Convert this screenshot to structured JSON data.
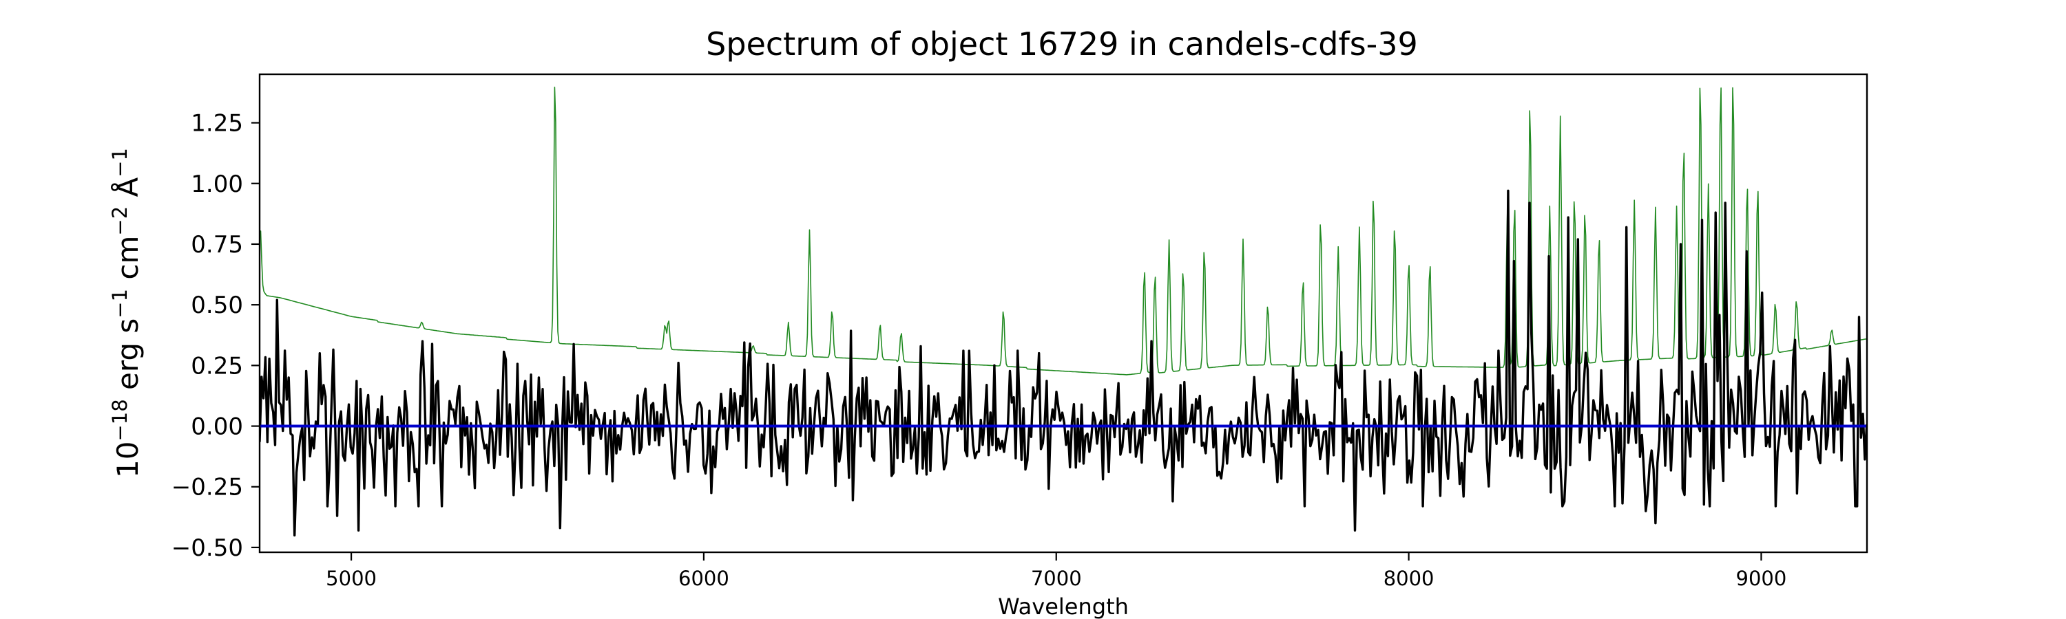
{
  "chart_data": {
    "type": "line",
    "title": "Spectrum of object 16729 in candels-cdfs-39",
    "xlabel": "Wavelength",
    "ylabel": {
      "base": "10",
      "exp1": "−18",
      "mid1": " erg s",
      "exp2": "−1",
      "mid2": " cm",
      "exp3": "−2",
      "mid3": " Å",
      "exp4": "−1"
    },
    "xlim": [
      4740,
      9300
    ],
    "ylim": [
      -0.52,
      1.45
    ],
    "x_ticks": [
      5000,
      6000,
      7000,
      8000,
      9000
    ],
    "x_tick_labels": [
      "5000",
      "6000",
      "7000",
      "8000",
      "9000"
    ],
    "y_ticks": [
      -0.5,
      -0.25,
      0.0,
      0.25,
      0.5,
      0.75,
      1.0,
      1.25
    ],
    "y_tick_labels": [
      "−0.50",
      "−0.25",
      "0.00",
      "0.25",
      "0.50",
      "0.75",
      "1.00",
      "1.25"
    ],
    "grid": false,
    "series": [
      {
        "kind": "error",
        "color": "#228b22",
        "continuum": [
          [
            4740,
            0.58
          ],
          [
            4760,
            0.54
          ],
          [
            4800,
            0.53
          ],
          [
            5000,
            0.45
          ],
          [
            5300,
            0.38
          ],
          [
            5600,
            0.34
          ],
          [
            6000,
            0.31
          ],
          [
            6400,
            0.28
          ],
          [
            6800,
            0.25
          ],
          [
            7200,
            0.21
          ],
          [
            7500,
            0.25
          ],
          [
            8000,
            0.25
          ],
          [
            8300,
            0.24
          ],
          [
            8600,
            0.27
          ],
          [
            9000,
            0.29
          ],
          [
            9300,
            0.36
          ]
        ],
        "spikes": [
          [
            4742,
            0.82
          ],
          [
            5200,
            0.43
          ],
          [
            5578,
            1.45
          ],
          [
            5890,
            0.42
          ],
          [
            5900,
            0.44
          ],
          [
            6140,
            0.33
          ],
          [
            6240,
            0.43
          ],
          [
            6300,
            0.81
          ],
          [
            6364,
            0.48
          ],
          [
            6500,
            0.42
          ],
          [
            6560,
            0.39
          ],
          [
            6850,
            0.48
          ],
          [
            7250,
            0.65
          ],
          [
            7280,
            0.63
          ],
          [
            7320,
            0.77
          ],
          [
            7360,
            0.65
          ],
          [
            7420,
            0.74
          ],
          [
            7530,
            0.77
          ],
          [
            7600,
            0.5
          ],
          [
            7700,
            0.61
          ],
          [
            7750,
            0.86
          ],
          [
            7800,
            0.74
          ],
          [
            7860,
            0.82
          ],
          [
            7900,
            0.96
          ],
          [
            7960,
            0.83
          ],
          [
            8000,
            0.68
          ],
          [
            8060,
            0.68
          ],
          [
            8280,
            0.89
          ],
          [
            8300,
            0.92
          ],
          [
            8344,
            1.35
          ],
          [
            8400,
            0.91
          ],
          [
            8430,
            1.28
          ],
          [
            8470,
            0.96
          ],
          [
            8500,
            0.9
          ],
          [
            8540,
            0.79
          ],
          [
            8640,
            0.93
          ],
          [
            8700,
            0.9
          ],
          [
            8760,
            0.91
          ],
          [
            8780,
            1.17
          ],
          [
            8827,
            1.45
          ],
          [
            8850,
            1.0
          ],
          [
            8885,
            1.45
          ],
          [
            8920,
            1.45
          ],
          [
            8960,
            1.01
          ],
          [
            8990,
            1.0
          ],
          [
            9040,
            0.51
          ],
          [
            9100,
            0.52
          ],
          [
            9200,
            0.4
          ]
        ]
      },
      {
        "kind": "flux",
        "color": "#000000",
        "seed": 16729,
        "noise_sigma": [
          [
            4740,
            0.17
          ],
          [
            5800,
            0.17
          ],
          [
            7200,
            0.14
          ],
          [
            8200,
            0.17
          ],
          [
            8600,
            0.2
          ],
          [
            9300,
            0.2
          ]
        ],
        "peaks": [
          [
            4790,
            0.52
          ],
          [
            4910,
            0.3
          ],
          [
            5200,
            0.35
          ],
          [
            5590,
            0.42
          ],
          [
            6130,
            0.34
          ],
          [
            6460,
            0.2
          ],
          [
            7270,
            0.35
          ],
          [
            7850,
            0.59
          ],
          [
            8280,
            0.97
          ],
          [
            8300,
            0.68
          ],
          [
            8340,
            0.92
          ],
          [
            8400,
            0.7
          ],
          [
            8450,
            0.86
          ],
          [
            8480,
            0.77
          ],
          [
            8620,
            0.82
          ],
          [
            8770,
            0.75
          ],
          [
            8830,
            0.85
          ],
          [
            8870,
            0.88
          ],
          [
            8900,
            0.92
          ],
          [
            8960,
            0.72
          ],
          [
            9000,
            0.55
          ],
          [
            9280,
            0.45
          ]
        ],
        "dips": [
          [
            4840,
            -0.45
          ],
          [
            4960,
            -0.37
          ],
          [
            5020,
            -0.43
          ],
          [
            5590,
            -0.42
          ],
          [
            7330,
            -0.31
          ],
          [
            7850,
            -0.43
          ],
          [
            8670,
            -0.35
          ],
          [
            8700,
            -0.4
          ],
          [
            9270,
            -0.33
          ]
        ]
      },
      {
        "kind": "zero",
        "color": "#0000cc",
        "value": 0.0
      }
    ]
  }
}
